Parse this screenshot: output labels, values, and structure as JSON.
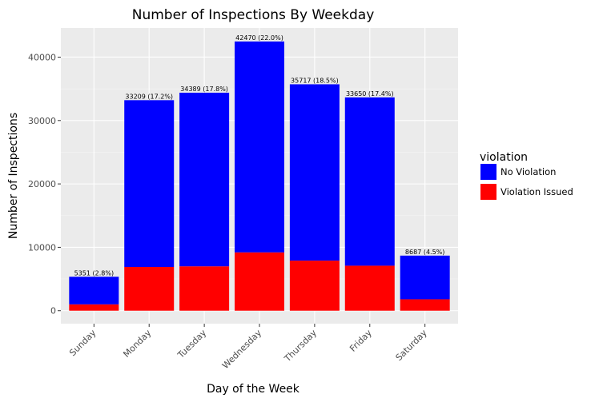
{
  "chart_data": {
    "type": "bar",
    "stacked": true,
    "title": "Number of Inspections By Weekday",
    "xlabel": "Day of the Week",
    "ylabel": "Number of Inspections",
    "categories": [
      "Sunday",
      "Monday",
      "Tuesday",
      "Wednesday",
      "Thursday",
      "Friday",
      "Saturday"
    ],
    "series": [
      {
        "name": "Violation Issued",
        "color": "#ff0000",
        "values": [
          1000,
          6900,
          7000,
          9200,
          7900,
          7100,
          1800
        ]
      },
      {
        "name": "No Violation",
        "color": "#0000ff",
        "values": [
          4351,
          26309,
          27389,
          33270,
          27817,
          26550,
          6887
        ]
      }
    ],
    "totals": [
      5351,
      33209,
      34389,
      42470,
      35717,
      33650,
      8687
    ],
    "bar_labels": [
      "5351 (2.8%)",
      "33209 (17.2%)",
      "34389 (17.8%)",
      "42470 (22.0%)",
      "35717 (18.5%)",
      "33650 (17.4%)",
      "8687 (4.5%)"
    ],
    "yticks": [
      0,
      10000,
      20000,
      30000,
      40000
    ],
    "ylim": [
      -2050,
      44600
    ],
    "grid": true,
    "legend": {
      "title": "violation",
      "placement": "right",
      "entries": [
        {
          "label": "No Violation",
          "color": "#0000ff"
        },
        {
          "label": "Violation Issued",
          "color": "#ff0000"
        }
      ]
    }
  }
}
